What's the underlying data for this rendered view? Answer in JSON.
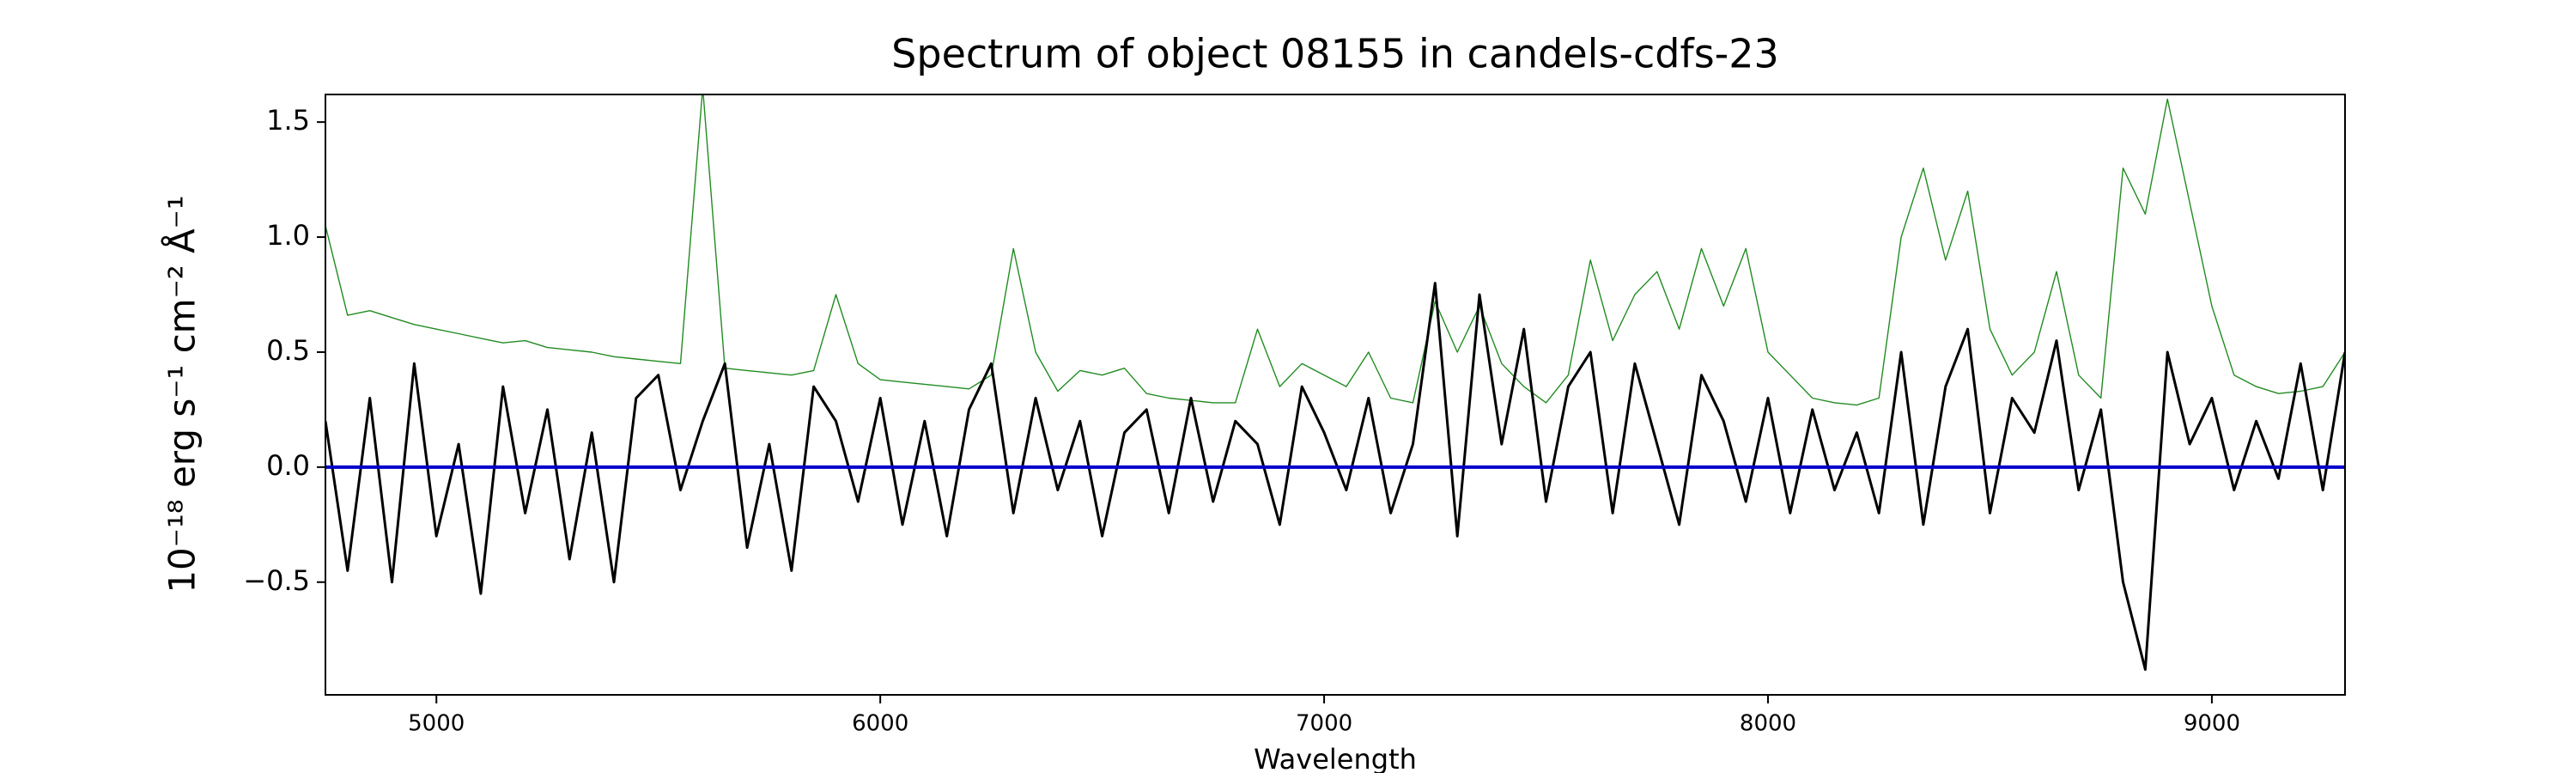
{
  "chart_data": {
    "type": "line",
    "title": "Spectrum of object 08155 in candels-cdfs-23",
    "x_label": "Wavelength",
    "y_label": "10⁻¹⁸ erg s⁻¹ cm⁻² Å⁻¹",
    "xlim": [
      4750,
      9300
    ],
    "ylim": [
      -0.99,
      1.62
    ],
    "xticks": [
      5000,
      6000,
      7000,
      8000,
      9000
    ],
    "yticks": [
      {
        "value": -0.5,
        "label": "−0.5"
      },
      {
        "value": 0,
        "label": "0.0"
      },
      0.5,
      {
        "value": 1,
        "label": "1.0"
      },
      1.5
    ],
    "x": [
      4750,
      4800,
      4850,
      4900,
      4950,
      5000,
      5050,
      5100,
      5150,
      5200,
      5250,
      5300,
      5350,
      5400,
      5450,
      5500,
      5550,
      5600,
      5650,
      5700,
      5750,
      5800,
      5850,
      5900,
      5950,
      6000,
      6050,
      6100,
      6150,
      6200,
      6250,
      6300,
      6350,
      6400,
      6450,
      6500,
      6550,
      6600,
      6650,
      6700,
      6750,
      6800,
      6850,
      6900,
      6950,
      7000,
      7050,
      7100,
      7150,
      7200,
      7250,
      7300,
      7350,
      7400,
      7450,
      7500,
      7550,
      7600,
      7650,
      7700,
      7750,
      7800,
      7850,
      7900,
      7950,
      8000,
      8050,
      8100,
      8150,
      8200,
      8250,
      8300,
      8350,
      8400,
      8450,
      8500,
      8550,
      8600,
      8650,
      8700,
      8750,
      8800,
      8850,
      8900,
      8950,
      9000,
      9050,
      9100,
      9150,
      9200,
      9250,
      9300
    ],
    "series": [
      {
        "color": "#228b22",
        "width": 1.4,
        "values": [
          1.05,
          0.66,
          0.68,
          0.65,
          0.62,
          0.6,
          0.58,
          0.56,
          0.54,
          0.55,
          0.52,
          0.51,
          0.5,
          0.48,
          0.47,
          0.46,
          0.45,
          1.65,
          0.43,
          0.42,
          0.41,
          0.4,
          0.42,
          0.75,
          0.45,
          0.38,
          0.37,
          0.36,
          0.35,
          0.34,
          0.4,
          0.95,
          0.5,
          0.33,
          0.42,
          0.4,
          0.43,
          0.32,
          0.3,
          0.29,
          0.28,
          0.28,
          0.6,
          0.35,
          0.45,
          0.4,
          0.35,
          0.5,
          0.3,
          0.28,
          0.72,
          0.5,
          0.7,
          0.45,
          0.35,
          0.28,
          0.4,
          0.9,
          0.55,
          0.75,
          0.85,
          0.6,
          0.95,
          0.7,
          0.95,
          0.5,
          0.4,
          0.3,
          0.28,
          0.27,
          0.3,
          1.0,
          1.3,
          0.9,
          1.2,
          0.6,
          0.4,
          0.5,
          0.85,
          0.4,
          0.3,
          1.3,
          1.1,
          1.6,
          1.15,
          0.7,
          0.4,
          0.35,
          0.32,
          0.33,
          0.35,
          0.5
        ]
      },
      {
        "color": "#000000",
        "width": 3,
        "values": [
          0.2,
          -0.45,
          0.3,
          -0.5,
          0.45,
          -0.3,
          0.1,
          -0.55,
          0.35,
          -0.2,
          0.25,
          -0.4,
          0.15,
          -0.5,
          0.3,
          0.4,
          -0.1,
          0.2,
          0.45,
          -0.35,
          0.1,
          -0.45,
          0.35,
          0.2,
          -0.15,
          0.3,
          -0.25,
          0.2,
          -0.3,
          0.25,
          0.45,
          -0.2,
          0.3,
          -0.1,
          0.2,
          -0.3,
          0.15,
          0.25,
          -0.2,
          0.3,
          -0.15,
          0.2,
          0.1,
          -0.25,
          0.35,
          0.15,
          -0.1,
          0.3,
          -0.2,
          0.1,
          0.8,
          -0.3,
          0.75,
          0.1,
          0.6,
          -0.15,
          0.35,
          0.5,
          -0.2,
          0.45,
          0.1,
          -0.25,
          0.4,
          0.2,
          -0.15,
          0.3,
          -0.2,
          0.25,
          -0.1,
          0.15,
          -0.2,
          0.5,
          -0.25,
          0.35,
          0.6,
          -0.2,
          0.3,
          0.15,
          0.55,
          -0.1,
          0.25,
          -0.5,
          -0.88,
          0.5,
          0.1,
          0.3,
          -0.1,
          0.2,
          -0.05,
          0.45,
          -0.1,
          0.5
        ]
      },
      {
        "color": "#0000cc",
        "width": 4,
        "x": [
          4750,
          9300
        ],
        "values": [
          0,
          0
        ]
      }
    ]
  }
}
